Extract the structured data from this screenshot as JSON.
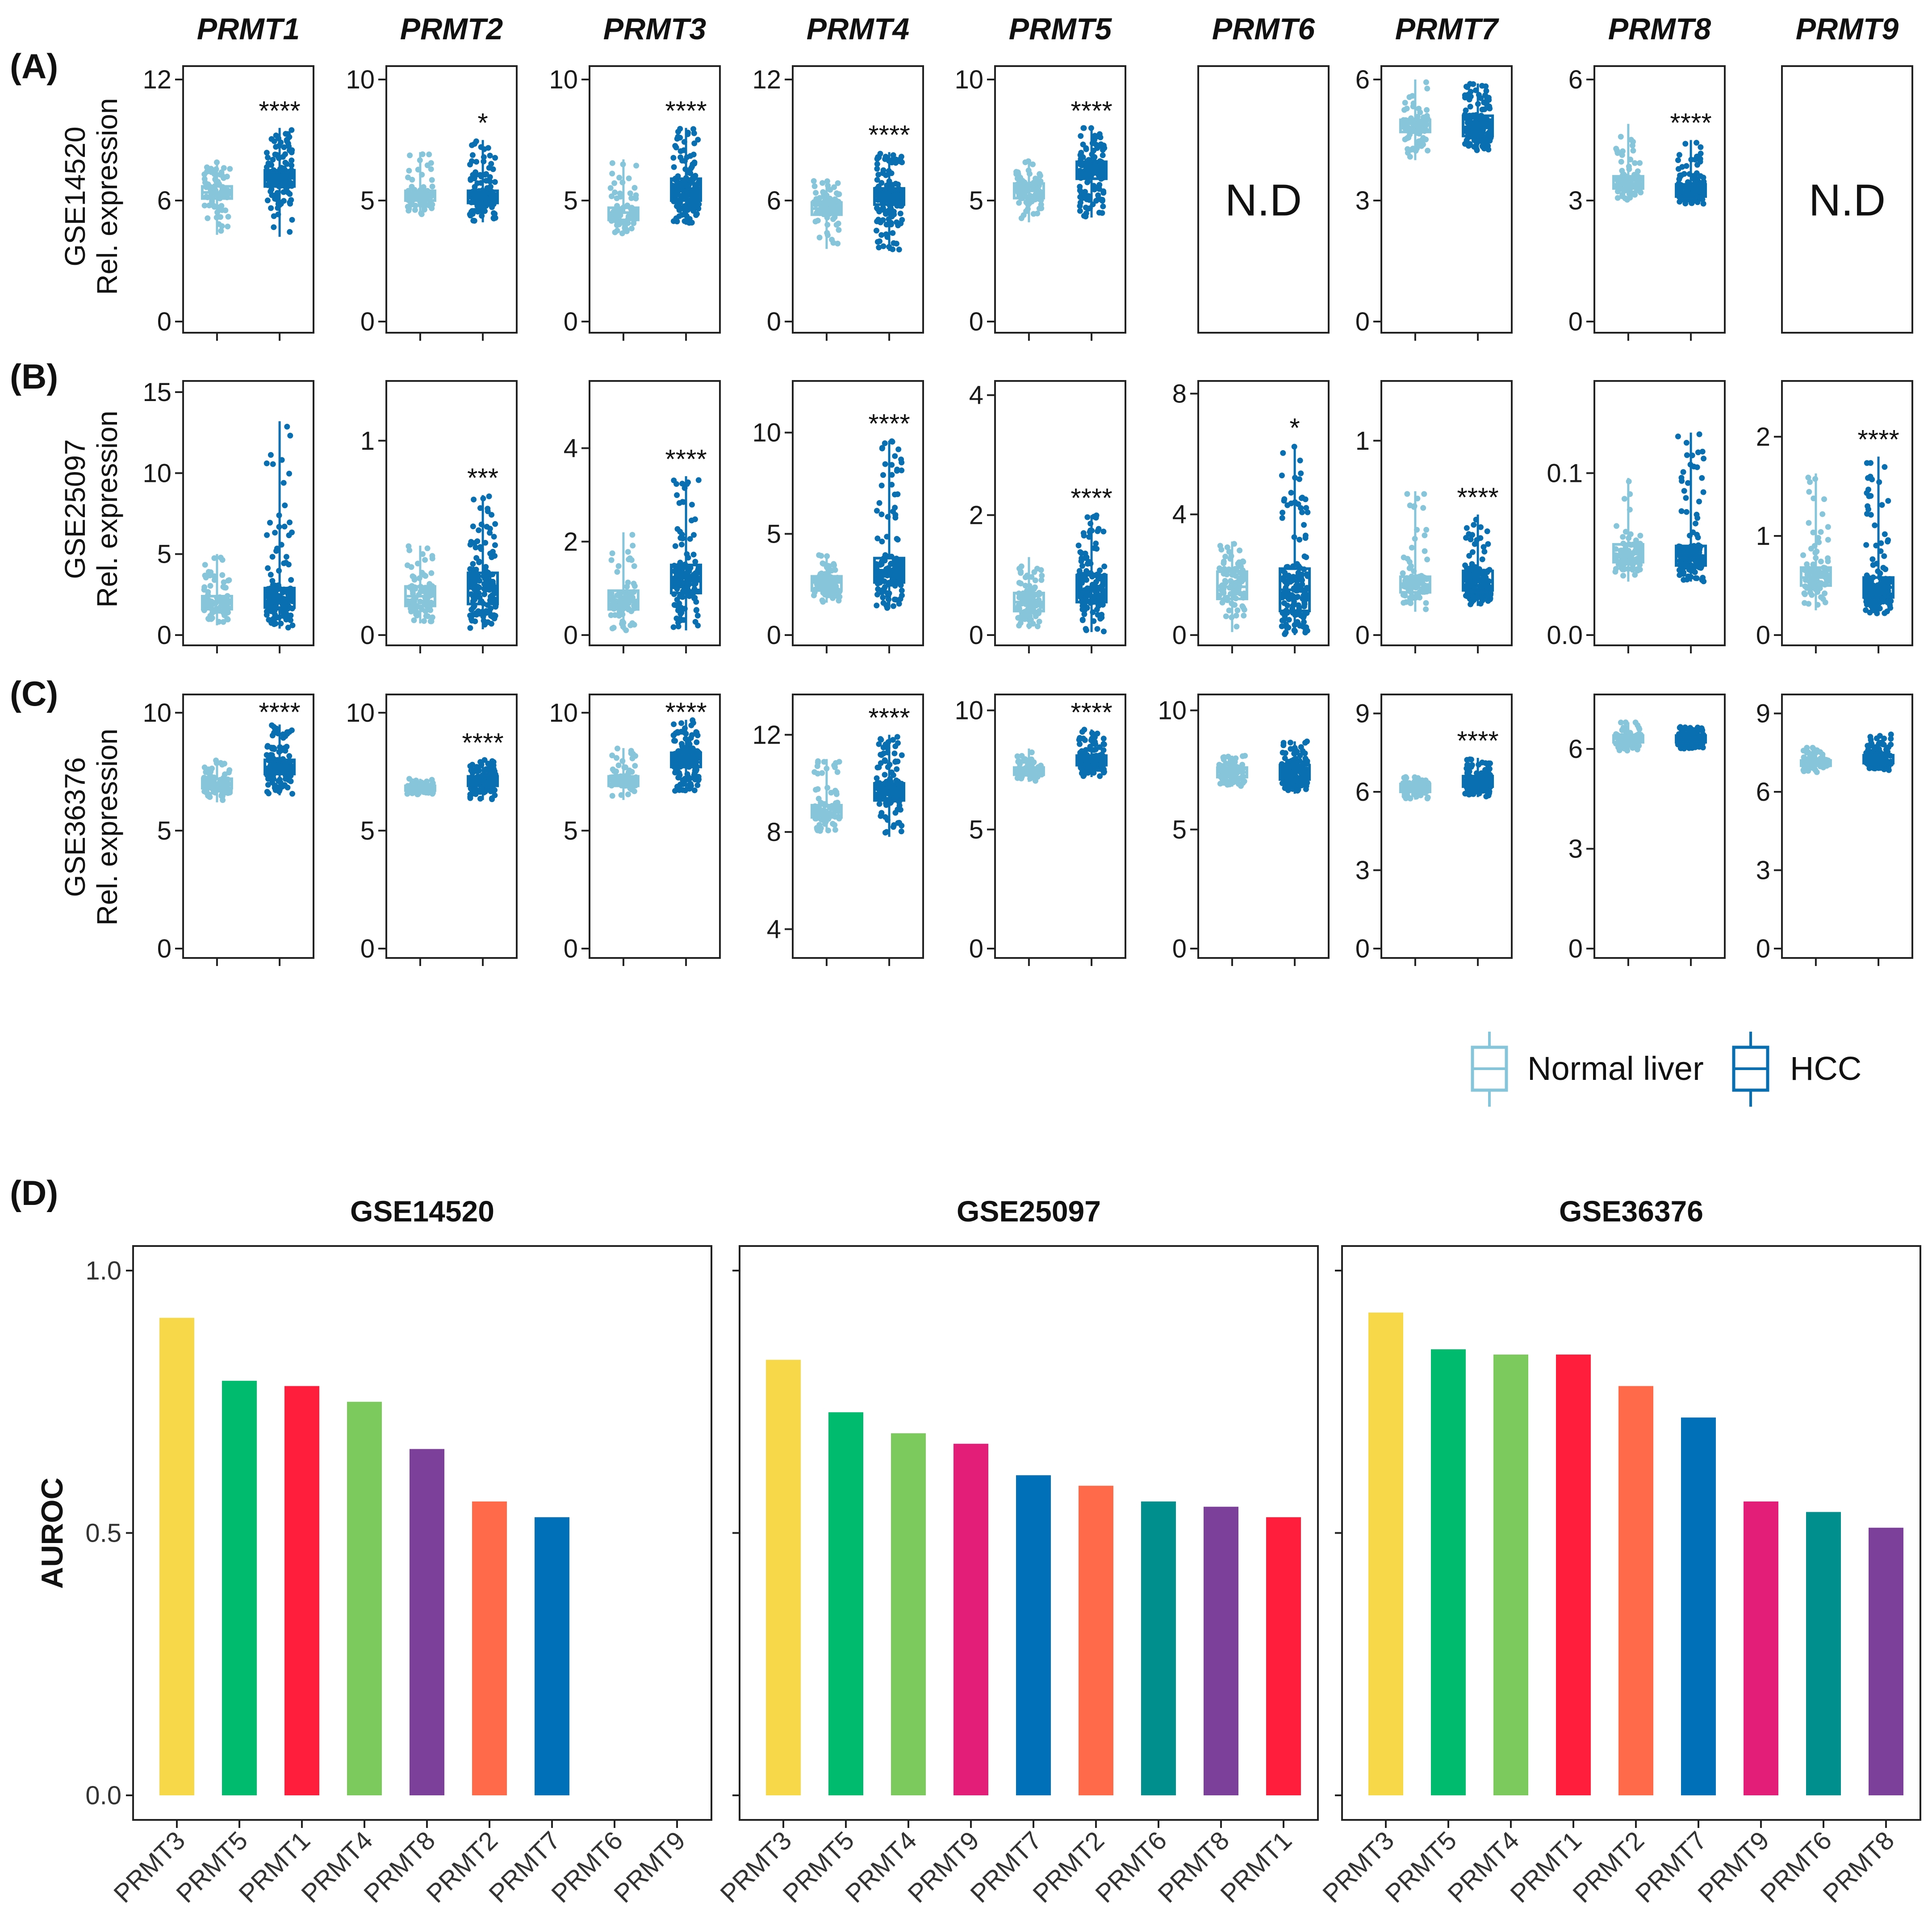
{
  "genes": [
    "PRMT1",
    "PRMT2",
    "PRMT3",
    "PRMT4",
    "PRMT5",
    "PRMT6",
    "PRMT7",
    "PRMT8",
    "PRMT9"
  ],
  "panel_letters": [
    "(A)",
    "(B)",
    "(C)",
    "(D)"
  ],
  "y_axis_label_line2": "Rel. expression",
  "not_detected_label": "N.D",
  "colors": {
    "normal": "#86c5da",
    "hcc": "#0a6fb0"
  },
  "legend": {
    "normal": "Normal liver",
    "hcc": "HCC"
  },
  "chart_data": [
    {
      "type": "boxplot",
      "panel": "(A)",
      "dataset": "GSE14520",
      "ylabel_line1": "GSE14520",
      "ylabel_line2": "Rel. expression",
      "groups": [
        "Normal liver",
        "HCC"
      ],
      "genes": [
        {
          "gene": "PRMT1",
          "ylim": [
            0,
            12
          ],
          "ticks": [
            "0",
            "6",
            "12"
          ],
          "sig": "****",
          "normal": {
            "min": 4.3,
            "q1": 6.1,
            "median": 6.4,
            "q3": 6.7,
            "max": 7.9
          },
          "hcc": {
            "min": 4.2,
            "q1": 6.7,
            "median": 7.1,
            "q3": 7.5,
            "max": 9.6
          }
        },
        {
          "gene": "PRMT2",
          "ylim": [
            0,
            10
          ],
          "ticks": [
            "0",
            "5",
            "10"
          ],
          "sig": "*",
          "normal": {
            "min": 4.4,
            "q1": 5.0,
            "median": 5.2,
            "q3": 5.4,
            "max": 7.0
          },
          "hcc": {
            "min": 4.1,
            "q1": 4.9,
            "median": 5.1,
            "q3": 5.4,
            "max": 7.5
          }
        },
        {
          "gene": "PRMT3",
          "ylim": [
            0,
            10
          ],
          "ticks": [
            "0",
            "5",
            "10"
          ],
          "sig": "****",
          "normal": {
            "min": 3.6,
            "q1": 4.2,
            "median": 4.5,
            "q3": 4.7,
            "max": 6.7
          },
          "hcc": {
            "min": 4.0,
            "q1": 5.0,
            "median": 5.4,
            "q3": 5.9,
            "max": 8.0
          }
        },
        {
          "gene": "PRMT4",
          "ylim": [
            0,
            12
          ],
          "ticks": [
            "0",
            "6",
            "12"
          ],
          "sig": "****",
          "normal": {
            "min": 3.6,
            "q1": 5.3,
            "median": 5.6,
            "q3": 5.9,
            "max": 7.0
          },
          "hcc": {
            "min": 3.5,
            "q1": 5.8,
            "median": 6.2,
            "q3": 6.6,
            "max": 8.4
          }
        },
        {
          "gene": "PRMT5",
          "ylim": [
            0,
            10
          ],
          "ticks": [
            "0",
            "5",
            "10"
          ],
          "sig": "****",
          "normal": {
            "min": 4.1,
            "q1": 5.1,
            "median": 5.4,
            "q3": 5.7,
            "max": 6.7
          },
          "hcc": {
            "min": 4.3,
            "q1": 5.9,
            "median": 6.2,
            "q3": 6.6,
            "max": 8.0
          }
        },
        {
          "gene": "PRMT6",
          "not_detected": true
        },
        {
          "gene": "PRMT7",
          "ylim": [
            0,
            6
          ],
          "ticks": [
            "0",
            "3",
            "6"
          ],
          "sig": "",
          "normal": {
            "min": 4.0,
            "q1": 4.7,
            "median": 4.9,
            "q3": 5.0,
            "max": 6.0
          },
          "hcc": {
            "min": 4.2,
            "q1": 4.6,
            "median": 4.8,
            "q3": 5.1,
            "max": 5.9
          }
        },
        {
          "gene": "PRMT8",
          "ylim": [
            0,
            6
          ],
          "ticks": [
            "0",
            "3",
            "6"
          ],
          "sig": "****",
          "normal": {
            "min": 3.0,
            "q1": 3.3,
            "median": 3.4,
            "q3": 3.6,
            "max": 4.9
          },
          "hcc": {
            "min": 2.9,
            "q1": 3.1,
            "median": 3.3,
            "q3": 3.4,
            "max": 4.5
          }
        },
        {
          "gene": "PRMT9",
          "not_detected": true
        }
      ]
    },
    {
      "type": "boxplot",
      "panel": "(B)",
      "dataset": "GSE25097",
      "ylabel_line1": "GSE25097",
      "ylabel_line2": "Rel. expression",
      "groups": [
        "Normal liver",
        "HCC"
      ],
      "genes": [
        {
          "gene": "PRMT1",
          "ylim": [
            0,
            15
          ],
          "ticks": [
            "0",
            "5",
            "10",
            "15"
          ],
          "sig": "",
          "normal": {
            "min": 0.6,
            "q1": 1.6,
            "median": 2.0,
            "q3": 2.4,
            "max": 5.0
          },
          "hcc": {
            "min": 0.4,
            "q1": 1.7,
            "median": 2.3,
            "q3": 2.9,
            "max": 13.2
          }
        },
        {
          "gene": "PRMT2",
          "ylim": [
            0,
            1.25
          ],
          "ticks": [
            "0",
            "1"
          ],
          "sig": "***",
          "normal": {
            "min": 0.06,
            "q1": 0.15,
            "median": 0.2,
            "q3": 0.25,
            "max": 0.46
          },
          "hcc": {
            "min": 0.03,
            "q1": 0.16,
            "median": 0.24,
            "q3": 0.32,
            "max": 0.72
          }
        },
        {
          "gene": "PRMT3",
          "ylim": [
            0,
            5.2
          ],
          "ticks": [
            "0",
            "2",
            "4"
          ],
          "sig": "****",
          "normal": {
            "min": 0.1,
            "q1": 0.55,
            "median": 0.75,
            "q3": 0.95,
            "max": 2.2
          },
          "hcc": {
            "min": 0.1,
            "q1": 0.9,
            "median": 1.15,
            "q3": 1.5,
            "max": 3.4
          }
        },
        {
          "gene": "PRMT4",
          "ylim": [
            0,
            12
          ],
          "ticks": [
            "0",
            "5",
            "10"
          ],
          "sig": "****",
          "normal": {
            "min": 1.6,
            "q1": 2.2,
            "median": 2.6,
            "q3": 2.9,
            "max": 4.0
          },
          "hcc": {
            "min": 1.3,
            "q1": 2.6,
            "median": 3.2,
            "q3": 3.8,
            "max": 9.6
          }
        },
        {
          "gene": "PRMT5",
          "ylim": [
            0,
            4.05
          ],
          "ticks": [
            "0",
            "2",
            "4"
          ],
          "sig": "****",
          "normal": {
            "min": 0.1,
            "q1": 0.4,
            "median": 0.55,
            "q3": 0.7,
            "max": 1.3
          },
          "hcc": {
            "min": 0.05,
            "q1": 0.55,
            "median": 0.75,
            "q3": 1.0,
            "max": 2.0
          }
        },
        {
          "gene": "PRMT6",
          "ylim": [
            0,
            8.05
          ],
          "ticks": [
            "0",
            "4",
            "8"
          ],
          "sig": "*",
          "normal": {
            "min": 0.1,
            "q1": 1.2,
            "median": 1.6,
            "q3": 2.1,
            "max": 3.1
          },
          "hcc": {
            "min": 0.0,
            "q1": 0.8,
            "median": 1.5,
            "q3": 2.2,
            "max": 6.3
          }
        },
        {
          "gene": "PRMT7",
          "ylim": [
            0,
            1.25
          ],
          "ticks": [
            "0",
            "1"
          ],
          "sig": "****",
          "normal": {
            "min": 0.12,
            "q1": 0.22,
            "median": 0.26,
            "q3": 0.3,
            "max": 0.74
          },
          "hcc": {
            "min": 0.15,
            "q1": 0.23,
            "median": 0.28,
            "q3": 0.33,
            "max": 0.62
          }
        },
        {
          "gene": "PRMT8",
          "ylim": [
            0,
            0.15
          ],
          "ticks": [
            "0.0",
            "0.1"
          ],
          "sig": "",
          "normal": {
            "min": 0.033,
            "q1": 0.045,
            "median": 0.05,
            "q3": 0.056,
            "max": 0.097
          },
          "hcc": {
            "min": 0.033,
            "q1": 0.043,
            "median": 0.049,
            "q3": 0.055,
            "max": 0.125
          }
        },
        {
          "gene": "PRMT9",
          "ylim": [
            0,
            2.45
          ],
          "ticks": [
            "0",
            "1",
            "2"
          ],
          "sig": "****",
          "normal": {
            "min": 0.25,
            "q1": 0.5,
            "median": 0.58,
            "q3": 0.68,
            "max": 1.63
          },
          "hcc": {
            "min": 0.2,
            "q1": 0.38,
            "median": 0.48,
            "q3": 0.58,
            "max": 1.8
          }
        }
      ]
    },
    {
      "type": "boxplot",
      "panel": "(C)",
      "dataset": "GSE36376",
      "ylabel_line1": "GSE36376",
      "ylabel_line2": "Rel. expression",
      "groups": [
        "Normal liver",
        "HCC"
      ],
      "genes": [
        {
          "gene": "PRMT1",
          "ylim": [
            0,
            10.3
          ],
          "ticks": [
            "0",
            "5",
            "10"
          ],
          "sig": "****",
          "normal": {
            "min": 6.2,
            "q1": 6.8,
            "median": 7.0,
            "q3": 7.2,
            "max": 8.0
          },
          "hcc": {
            "min": 6.5,
            "q1": 7.4,
            "median": 7.7,
            "q3": 8.0,
            "max": 9.5
          }
        },
        {
          "gene": "PRMT2",
          "ylim": [
            0,
            10.3
          ],
          "ticks": [
            "0",
            "5",
            "10"
          ],
          "sig": "****",
          "normal": {
            "min": 6.5,
            "q1": 6.7,
            "median": 6.8,
            "q3": 6.9,
            "max": 7.2
          },
          "hcc": {
            "min": 6.3,
            "q1": 6.9,
            "median": 7.1,
            "q3": 7.3,
            "max": 8.0
          }
        },
        {
          "gene": "PRMT3",
          "ylim": [
            0,
            10.3
          ],
          "ticks": [
            "0",
            "5",
            "10"
          ],
          "sig": "****",
          "normal": {
            "min": 6.3,
            "q1": 6.9,
            "median": 7.1,
            "q3": 7.3,
            "max": 8.5
          },
          "hcc": {
            "min": 6.6,
            "q1": 7.7,
            "median": 7.9,
            "q3": 8.3,
            "max": 9.7
          }
        },
        {
          "gene": "PRMT4",
          "ylim": [
            3.2,
            13.2
          ],
          "ticks": [
            "4",
            "8",
            "12"
          ],
          "sig": "****",
          "normal": {
            "min": 8.0,
            "q1": 8.6,
            "median": 8.8,
            "q3": 9.1,
            "max": 11.0
          },
          "hcc": {
            "min": 7.8,
            "q1": 9.3,
            "median": 9.6,
            "q3": 10.0,
            "max": 12.0
          }
        },
        {
          "gene": "PRMT5",
          "ylim": [
            0,
            10.2
          ],
          "ticks": [
            "0",
            "5",
            "10"
          ],
          "sig": "****",
          "normal": {
            "min": 7.0,
            "q1": 7.3,
            "median": 7.5,
            "q3": 7.6,
            "max": 8.4
          },
          "hcc": {
            "min": 7.2,
            "q1": 7.7,
            "median": 7.9,
            "q3": 8.1,
            "max": 9.2
          }
        },
        {
          "gene": "PRMT6",
          "ylim": [
            0,
            10.2
          ],
          "ticks": [
            "0",
            "5",
            "10"
          ],
          "sig": "",
          "normal": {
            "min": 6.8,
            "q1": 7.2,
            "median": 7.4,
            "q3": 7.6,
            "max": 8.1
          },
          "hcc": {
            "min": 6.5,
            "q1": 7.1,
            "median": 7.4,
            "q3": 7.7,
            "max": 8.7
          }
        },
        {
          "gene": "PRMT7",
          "ylim": [
            0,
            9.3
          ],
          "ticks": [
            "0",
            "3",
            "6",
            "9"
          ],
          "sig": "****",
          "normal": {
            "min": 5.7,
            "q1": 6.0,
            "median": 6.1,
            "q3": 6.3,
            "max": 6.6
          },
          "hcc": {
            "min": 5.8,
            "q1": 6.2,
            "median": 6.4,
            "q3": 6.6,
            "max": 7.3
          }
        },
        {
          "gene": "PRMT8",
          "ylim": [
            0,
            7.3
          ],
          "ticks": [
            "0",
            "3",
            "6"
          ],
          "sig": "",
          "normal": {
            "min": 5.9,
            "q1": 6.2,
            "median": 6.3,
            "q3": 6.4,
            "max": 6.8
          },
          "hcc": {
            "min": 6.0,
            "q1": 6.2,
            "median": 6.3,
            "q3": 6.4,
            "max": 6.7
          }
        },
        {
          "gene": "PRMT9",
          "ylim": [
            0,
            9.3
          ],
          "ticks": [
            "0",
            "3",
            "6",
            "9"
          ],
          "sig": "",
          "normal": {
            "min": 6.7,
            "q1": 7.0,
            "median": 7.1,
            "q3": 7.2,
            "max": 7.7
          },
          "hcc": {
            "min": 6.8,
            "q1": 7.1,
            "median": 7.2,
            "q3": 7.4,
            "max": 8.2
          }
        }
      ]
    },
    {
      "type": "bar",
      "panel": "(D)",
      "ylabel": "AUROC",
      "ylim": [
        0,
        1.0
      ],
      "yticks": [
        "0.0",
        "0.5",
        "1.0"
      ],
      "gene_colors": {
        "PRMT1": "#ff1e3c",
        "PRMT2": "#ff6a4a",
        "PRMT3": "#f6d848",
        "PRMT4": "#7cc95e",
        "PRMT5": "#00ba6e",
        "PRMT6": "#008f8c",
        "PRMT7": "#0070b8",
        "PRMT8": "#7c3f9a",
        "PRMT9": "#e21e78"
      },
      "facets": [
        {
          "title": "GSE14520",
          "categories": [
            "PRMT3",
            "PRMT5",
            "PRMT1",
            "PRMT4",
            "PRMT8",
            "PRMT2",
            "PRMT7",
            "PRMT6",
            "PRMT9"
          ],
          "values": [
            0.91,
            0.79,
            0.78,
            0.75,
            0.66,
            0.56,
            0.53,
            null,
            null
          ]
        },
        {
          "title": "GSE25097",
          "categories": [
            "PRMT3",
            "PRMT5",
            "PRMT4",
            "PRMT9",
            "PRMT7",
            "PRMT2",
            "PRMT6",
            "PRMT8",
            "PRMT1"
          ],
          "values": [
            0.83,
            0.73,
            0.69,
            0.67,
            0.61,
            0.59,
            0.56,
            0.55,
            0.53
          ]
        },
        {
          "title": "GSE36376",
          "categories": [
            "PRMT3",
            "PRMT5",
            "PRMT4",
            "PRMT1",
            "PRMT2",
            "PRMT7",
            "PRMT9",
            "PRMT6",
            "PRMT8"
          ],
          "values": [
            0.92,
            0.85,
            0.84,
            0.84,
            0.78,
            0.72,
            0.56,
            0.54,
            0.51
          ]
        }
      ]
    }
  ]
}
